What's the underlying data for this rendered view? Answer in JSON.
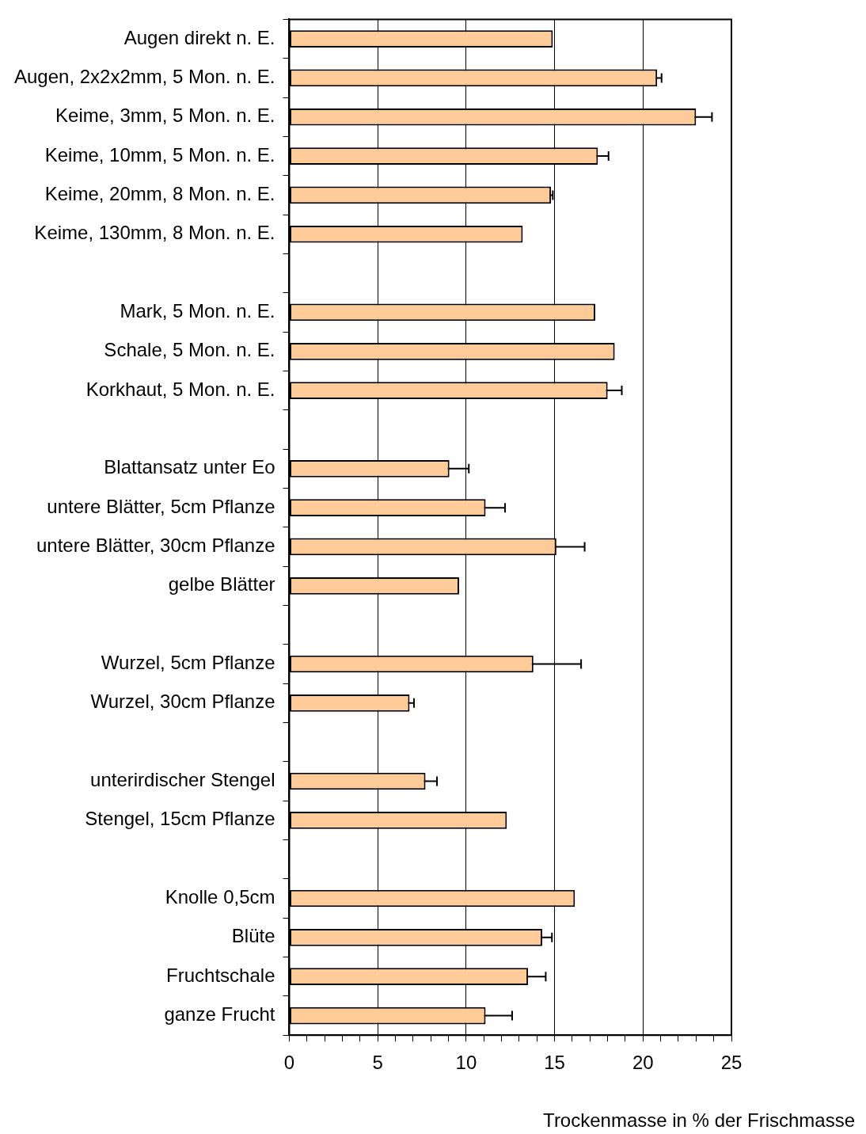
{
  "chart_data": {
    "type": "bar",
    "orientation": "horizontal",
    "xlabel": "Trockenmasse in % der Frischmasse",
    "categories": [
      "Augen direkt n. E.",
      "Augen, 2x2x2mm, 5 Mon. n. E.",
      "Keime, 3mm, 5 Mon. n. E.",
      "Keime, 10mm, 5 Mon. n. E.",
      "Keime, 20mm, 8 Mon. n. E.",
      "Keime, 130mm, 8 Mon. n. E.",
      null,
      "Mark, 5 Mon. n. E.",
      "Schale, 5 Mon. n. E.",
      "Korkhaut, 5 Mon. n. E.",
      null,
      "Blattansatz unter Eo",
      "untere Blätter, 5cm Pflanze",
      "untere Blätter, 30cm Pflanze",
      "gelbe Blätter",
      null,
      "Wurzel, 5cm Pflanze",
      "Wurzel, 30cm Pflanze",
      null,
      "unterirdischer Stengel",
      "Stengel, 15cm Pflanze",
      null,
      "Knolle 0,5cm",
      "Blüte",
      "Fruchtschale",
      "ganze Frucht"
    ],
    "values": [
      14.9,
      20.8,
      23.0,
      17.45,
      14.8,
      13.2,
      null,
      17.3,
      18.4,
      18.0,
      null,
      9.05,
      11.1,
      15.1,
      9.6,
      null,
      13.8,
      6.8,
      null,
      7.7,
      12.3,
      null,
      16.15,
      14.3,
      13.5,
      11.1
    ],
    "errors": [
      null,
      0.25,
      0.9,
      0.6,
      0.1,
      null,
      null,
      null,
      null,
      0.8,
      null,
      1.1,
      1.1,
      1.6,
      null,
      null,
      2.7,
      0.25,
      null,
      0.65,
      null,
      null,
      null,
      0.55,
      1.0,
      1.5
    ],
    "color": "#ffcc99",
    "xlim": [
      0,
      25
    ],
    "xticks": [
      0,
      {
        "value": 1,
        "label": null
      },
      {
        "value": 2,
        "label": null
      },
      {
        "value": 3,
        "label": null
      },
      {
        "value": 4,
        "label": null
      },
      5,
      {
        "value": 6,
        "label": null
      },
      {
        "value": 7,
        "label": null
      },
      {
        "value": 8,
        "label": null
      },
      {
        "value": 9,
        "label": null
      },
      10,
      {
        "value": 11,
        "label": null
      },
      {
        "value": 12,
        "label": null
      },
      {
        "value": 13,
        "label": null
      },
      {
        "value": 14,
        "label": null
      },
      15,
      {
        "value": 16,
        "label": null
      },
      {
        "value": 17,
        "label": null
      },
      {
        "value": 18,
        "label": null
      },
      {
        "value": 19,
        "label": null
      },
      20,
      {
        "value": 21,
        "label": null
      },
      {
        "value": 22,
        "label": null
      },
      {
        "value": 23,
        "label": null
      },
      {
        "value": 24,
        "label": null
      },
      25
    ],
    "grid": "x",
    "legend": false
  }
}
